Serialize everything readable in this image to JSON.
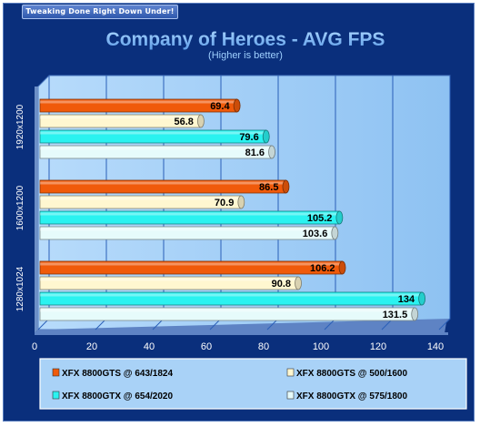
{
  "banner": "Tweaking Done Right Down Under!",
  "colors": {
    "background": "#0a2f7c",
    "plot_area": "#9fcbf5",
    "title": "#7fb8f2",
    "series": [
      "#f05a0a",
      "#fff7d0",
      "#2af2f0",
      "#e6fbfb"
    ]
  },
  "chart_data": {
    "type": "bar",
    "orientation": "horizontal",
    "title": "Company of Heroes - AVG FPS",
    "subtitle": "(Higher is better)",
    "categories": [
      "1920x1200",
      "1600x1200",
      "1280x1024"
    ],
    "series": [
      {
        "name": "XFX 8800GTS @ 643/1824",
        "values": [
          69.4,
          86.5,
          106.2
        ]
      },
      {
        "name": "XFX 8800GTS @ 500/1600",
        "values": [
          56.8,
          70.9,
          90.8
        ]
      },
      {
        "name": "XFX 8800GTX @ 654/2020",
        "values": [
          79.6,
          105.2,
          134
        ]
      },
      {
        "name": "XFX 8800GTX @ 575/1800",
        "values": [
          81.6,
          103.6,
          131.5
        ]
      }
    ],
    "xlim": [
      0,
      140
    ],
    "xticks": [
      "0",
      "20",
      "40",
      "60",
      "80",
      "100",
      "120",
      "140"
    ],
    "grid": true,
    "legend_position": "bottom"
  }
}
